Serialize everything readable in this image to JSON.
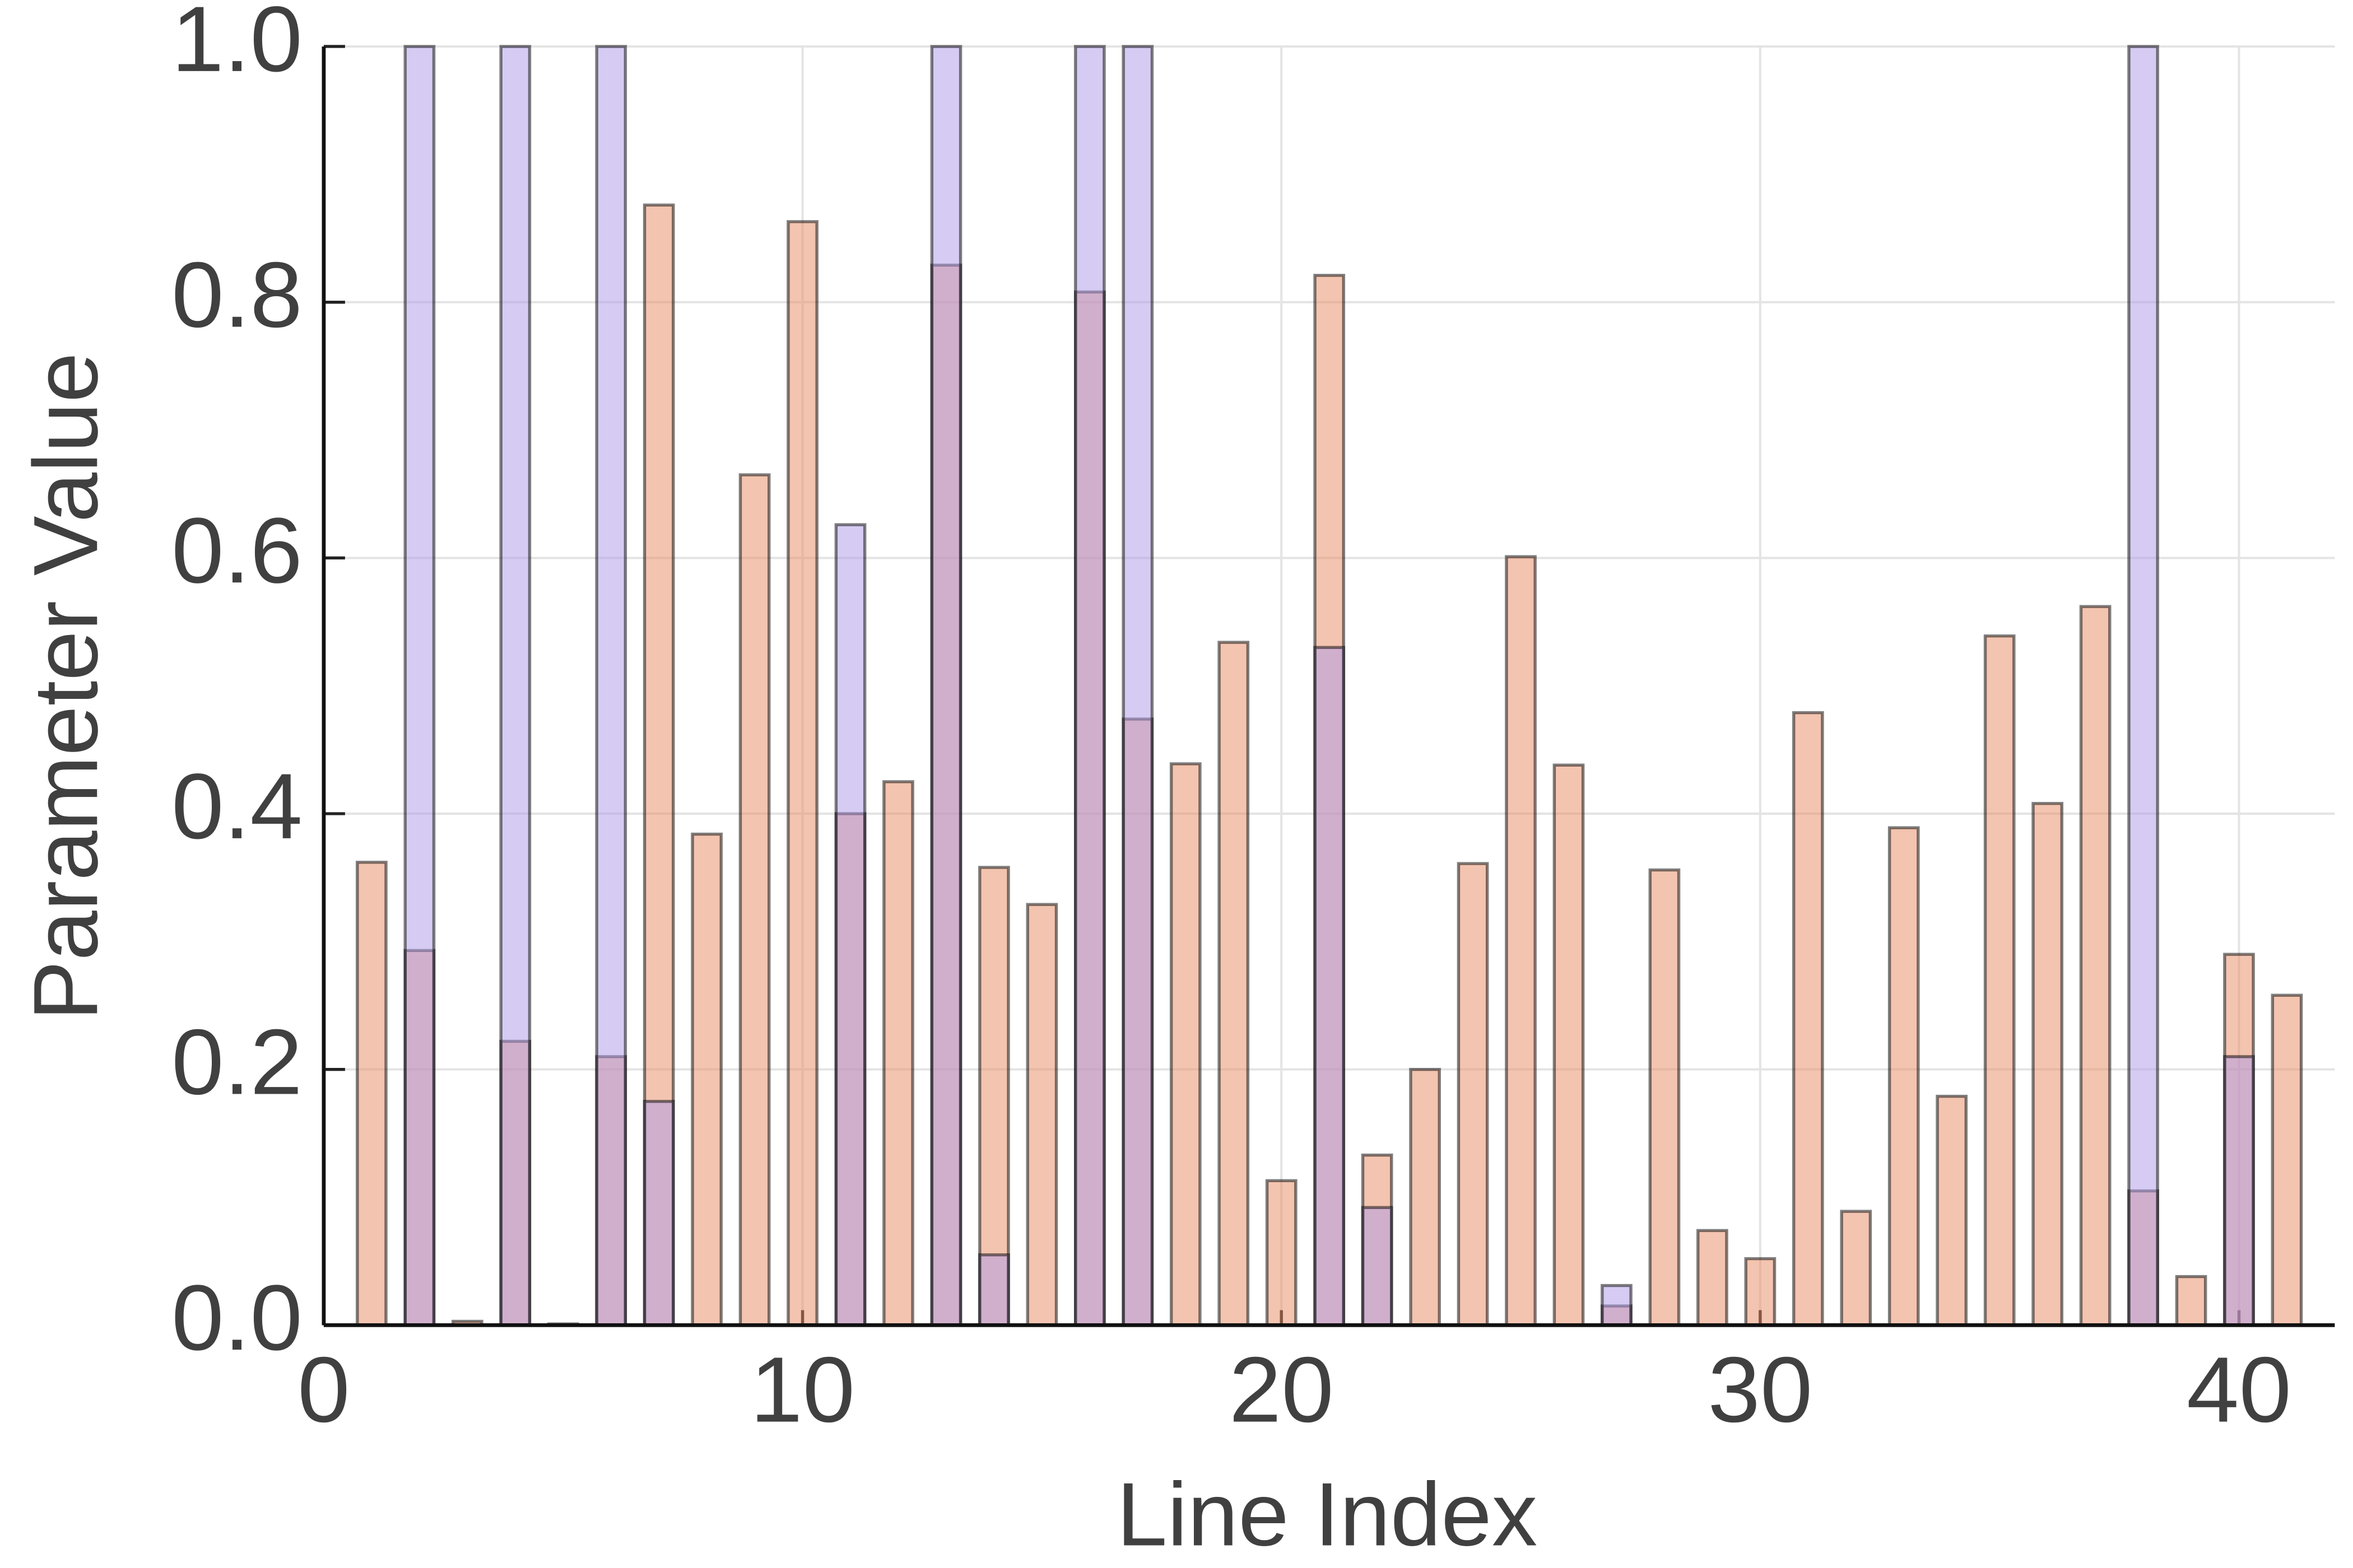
{
  "chart_data": {
    "type": "bar",
    "xlabel": "Line Index",
    "ylabel": "Parameter Value",
    "xlim": [
      0,
      42
    ],
    "ylim": [
      0,
      1
    ],
    "xticks": [
      0,
      10,
      20,
      30,
      40
    ],
    "yticks": [
      {
        "value": 0,
        "label": "0.0"
      },
      0.2,
      0.4,
      0.6,
      0.8,
      {
        "value": 1,
        "label": "1.0"
      }
    ],
    "grid": true,
    "bar_width": 0.6,
    "bar_alpha": 0.5,
    "series": [
      {
        "color": "#e78961",
        "x": [
          1,
          2,
          3,
          4,
          5,
          6,
          7,
          8,
          9,
          10,
          11,
          12,
          13,
          14,
          15,
          16,
          17,
          18,
          19,
          20,
          21,
          22,
          23,
          24,
          25,
          26,
          27,
          28,
          29,
          30,
          31,
          32,
          33,
          34,
          35,
          36,
          37,
          38,
          39,
          40,
          41
        ],
        "values": [
          0.362,
          0.293,
          0.003,
          0.222,
          0.001,
          0.21,
          0.876,
          0.384,
          0.665,
          0.863,
          0.4,
          0.425,
          0.829,
          0.358,
          0.329,
          0.808,
          0.474,
          0.439,
          0.534,
          0.113,
          0.821,
          0.133,
          0.2,
          0.361,
          0.601,
          0.438,
          0.015,
          0.356,
          0.074,
          0.052,
          0.479,
          0.089,
          0.389,
          0.179,
          0.539,
          0.408,
          0.562,
          0.105,
          0.038,
          0.29,
          0.258
        ]
      },
      {
        "color": "#ad99e7",
        "x": [
          2,
          4,
          6,
          7,
          11,
          13,
          14,
          16,
          17,
          21,
          22,
          27,
          38,
          40
        ],
        "values": [
          1,
          1,
          1,
          0.175,
          0.626,
          1,
          0.055,
          1,
          1,
          0.53,
          0.092,
          0.031,
          1,
          0.21
        ]
      }
    ]
  }
}
